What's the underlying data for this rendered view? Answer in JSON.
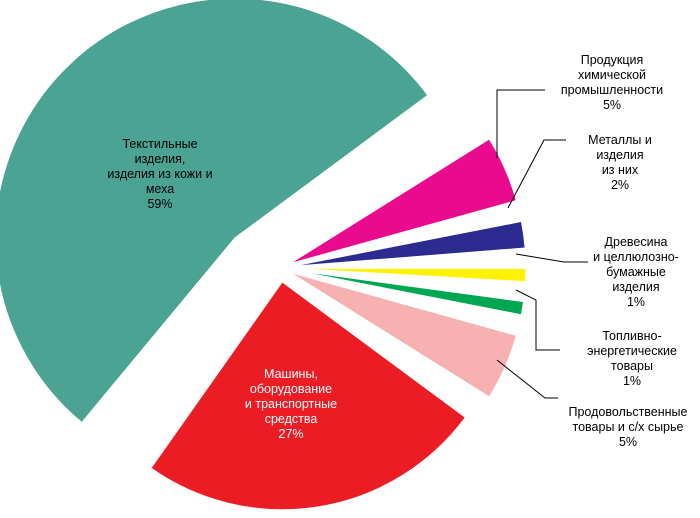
{
  "chart_data": {
    "type": "pie",
    "exploded": true,
    "slices": [
      {
        "lines": [
          "Текстильные",
          "изделия,",
          "изделия из кожи и",
          "меха"
        ],
        "value_label": "59%",
        "value": 59,
        "color": "#4aa393",
        "text_color": "#000000"
      },
      {
        "lines": [
          "Продукция",
          "химической",
          "промышленности"
        ],
        "value_label": "5%",
        "value": 5,
        "color": "#ea0a8e",
        "text_color": "#000000"
      },
      {
        "lines": [
          "Металлы и",
          "изделия",
          "из них"
        ],
        "value_label": "2%",
        "value": 2,
        "color": "#2b2a8e",
        "text_color": "#000000"
      },
      {
        "lines": [
          "Древесина",
          "и целлюлозно-",
          "бумажные",
          "изделия"
        ],
        "value_label": "1%",
        "value": 1,
        "color": "#fef200",
        "text_color": "#000000"
      },
      {
        "lines": [
          "Топливно-",
          "энергетические",
          "товары"
        ],
        "value_label": "1%",
        "value": 1,
        "color": "#00a651",
        "text_color": "#000000"
      },
      {
        "lines": [
          "Продовольственные",
          "товары и с/х сырье"
        ],
        "value_label": "5%",
        "value": 5,
        "color": "#f7b1b1",
        "text_color": "#000000"
      },
      {
        "lines": [
          "Машины,",
          "оборудование",
          "и транспортные",
          "средства"
        ],
        "value_label": "27%",
        "value": 27,
        "color": "#ec1c24",
        "text_color": "#ffffff"
      }
    ]
  }
}
